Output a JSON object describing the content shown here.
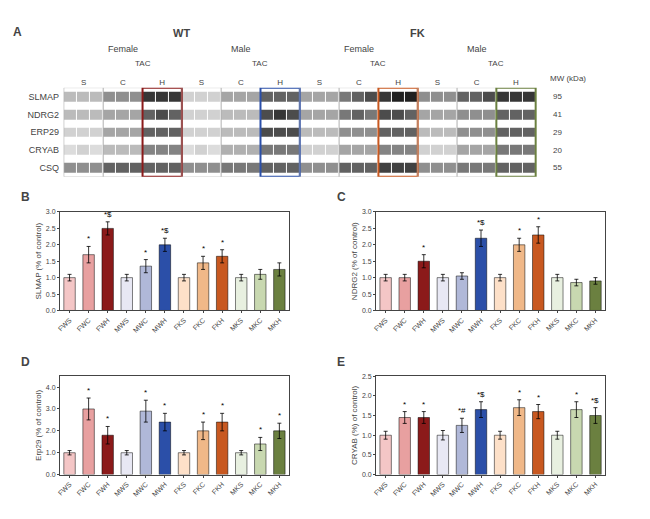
{
  "chart_data": [
    {
      "type": "heatmap",
      "title": "A",
      "rows": [
        "SLMAP",
        "NDRG2",
        "ERP29",
        "CRYAB",
        "CSQ"
      ],
      "categories": [
        null,
        "S",
        null,
        null,
        "C",
        null,
        null,
        "H",
        null,
        null,
        "S",
        null,
        null,
        "C",
        null,
        null,
        "H",
        null,
        null,
        "S",
        null,
        null,
        "C",
        null,
        null,
        "H",
        null,
        null,
        "S",
        null,
        null,
        "C",
        null,
        null,
        "H",
        null
      ],
      "cells": [
        [
          [
            0.3,
            0.3,
            0.3
          ],
          [
            0.5,
            0.5,
            0.5
          ],
          [
            0.9,
            0.9,
            0.9
          ],
          [
            0.2,
            0.2,
            0.2
          ],
          [
            0.4,
            0.4,
            0.4
          ],
          [
            0.7,
            0.7,
            0.7
          ],
          [
            0.4,
            0.4,
            0.4
          ],
          [
            0.6,
            0.7,
            0.8
          ],
          [
            0.9,
            1.0,
            1.0
          ],
          [
            0.5,
            0.5,
            0.5
          ],
          [
            0.7,
            0.7,
            0.8
          ],
          [
            0.9,
            0.9,
            0.9
          ]
        ],
        [
          [
            0.3,
            0.3,
            0.3
          ],
          [
            0.4,
            0.4,
            0.4
          ],
          [
            0.7,
            0.8,
            0.7
          ],
          [
            0.2,
            0.2,
            0.2
          ],
          [
            0.3,
            0.3,
            0.3
          ],
          [
            0.8,
            0.9,
            0.8
          ],
          [
            0.4,
            0.4,
            0.4
          ],
          [
            0.6,
            0.7,
            0.6
          ],
          [
            0.8,
            0.8,
            0.7
          ],
          [
            0.4,
            0.4,
            0.4
          ],
          [
            0.5,
            0.5,
            0.5
          ],
          [
            0.7,
            0.7,
            0.7
          ]
        ],
        [
          [
            0.2,
            0.2,
            0.2
          ],
          [
            0.4,
            0.4,
            0.4
          ],
          [
            0.7,
            0.7,
            0.7
          ],
          [
            0.2,
            0.2,
            0.2
          ],
          [
            0.3,
            0.3,
            0.3
          ],
          [
            0.8,
            0.8,
            0.8
          ],
          [
            0.3,
            0.3,
            0.3
          ],
          [
            0.5,
            0.5,
            0.5
          ],
          [
            0.7,
            0.7,
            0.7
          ],
          [
            0.3,
            0.3,
            0.3
          ],
          [
            0.5,
            0.5,
            0.5
          ],
          [
            0.7,
            0.7,
            0.7
          ]
        ],
        [
          [
            0.15,
            0.2,
            0.15
          ],
          [
            0.3,
            0.3,
            0.3
          ],
          [
            0.55,
            0.55,
            0.55
          ],
          [
            0.15,
            0.2,
            0.15
          ],
          [
            0.35,
            0.35,
            0.35
          ],
          [
            0.6,
            0.6,
            0.6
          ],
          [
            0.2,
            0.2,
            0.2
          ],
          [
            0.4,
            0.4,
            0.4
          ],
          [
            0.55,
            0.55,
            0.55
          ],
          [
            0.2,
            0.2,
            0.2
          ],
          [
            0.4,
            0.4,
            0.4
          ],
          [
            0.6,
            0.6,
            0.6
          ]
        ],
        [
          [
            0.5,
            0.5,
            0.5
          ],
          [
            0.7,
            0.7,
            0.7
          ],
          [
            0.7,
            0.7,
            0.7
          ],
          [
            0.5,
            0.5,
            0.5
          ],
          [
            0.6,
            0.6,
            0.6
          ],
          [
            0.7,
            0.7,
            0.7
          ],
          [
            0.5,
            0.5,
            0.5
          ],
          [
            0.7,
            0.7,
            0.7
          ],
          [
            0.85,
            0.85,
            0.85
          ],
          [
            0.5,
            0.5,
            0.5
          ],
          [
            0.6,
            0.6,
            0.6
          ],
          [
            0.7,
            0.7,
            0.7
          ]
        ]
      ],
      "groups": [
        "WT",
        "FK"
      ],
      "subgroups": [
        "Female",
        "Male"
      ],
      "group_note": "TAC",
      "colors": [
        null,
        null,
        "#8b1a1a",
        null,
        null,
        "#2b4fa8",
        null,
        null,
        "#c85820",
        null,
        null,
        "#6b8040"
      ],
      "mw_label": "MW (kDa)",
      "mw_values": [
        95,
        41,
        29,
        20,
        55
      ],
      "grid": false
    },
    {
      "type": "bar",
      "title": "B",
      "categories": [
        "FWS",
        "FWC",
        "FWH",
        "MWS",
        "MWC",
        "MWH",
        "FKS",
        "FKC",
        "FKH",
        "MKS",
        "MKC",
        "MKH"
      ],
      "values": [
        1.0,
        1.7,
        2.5,
        1.0,
        1.35,
        2.0,
        1.0,
        1.45,
        1.65,
        1.0,
        1.1,
        1.25
      ],
      "errors": [
        0.1,
        0.25,
        0.2,
        0.1,
        0.2,
        0.2,
        0.1,
        0.2,
        0.2,
        0.1,
        0.15,
        0.2
      ],
      "colors": [
        "#f4c6c6",
        "#e8a0a0",
        "#8b1a1a",
        "#e8e8f4",
        "#b0b8d8",
        "#2b4fa8",
        "#fde0c8",
        "#f0b888",
        "#c85820",
        "#e8f0e0",
        "#c8d8b0",
        "#6b8040"
      ],
      "annotations": [
        null,
        "*",
        "*$",
        null,
        "*",
        "*$",
        null,
        "*",
        "*",
        null,
        null,
        null
      ],
      "ylabel": "SLMAP (% of control)",
      "ylim": [
        0.0,
        3.0
      ],
      "yticks": [
        {
          "value": 0.0,
          "label": "0.0"
        },
        {
          "value": 0.5,
          "label": "0.5"
        },
        {
          "value": 1.0,
          "label": "1.0"
        },
        {
          "value": 1.5,
          "label": "1.5"
        },
        {
          "value": 2.0,
          "label": "2.0"
        },
        {
          "value": 2.5,
          "label": "2.5"
        },
        {
          "value": 3.0,
          "label": "3.0"
        }
      ],
      "grid": false
    },
    {
      "type": "bar",
      "title": "C",
      "categories": [
        "FWS",
        "FWC",
        "FWH",
        "MWS",
        "MWC",
        "MWH",
        "FKS",
        "FKC",
        "FKH",
        "MKS",
        "MKC",
        "MKH"
      ],
      "values": [
        1.0,
        1.0,
        1.5,
        1.0,
        1.05,
        2.2,
        1.0,
        2.0,
        2.3,
        1.0,
        0.85,
        0.9
      ],
      "errors": [
        0.1,
        0.1,
        0.2,
        0.1,
        0.1,
        0.25,
        0.1,
        0.2,
        0.25,
        0.1,
        0.1,
        0.1
      ],
      "colors": [
        "#f4c6c6",
        "#e8a0a0",
        "#8b1a1a",
        "#e8e8f4",
        "#b0b8d8",
        "#2b4fa8",
        "#fde0c8",
        "#f0b888",
        "#c85820",
        "#e8f0e0",
        "#c8d8b0",
        "#6b8040"
      ],
      "annotations": [
        null,
        null,
        "*",
        null,
        null,
        "*$",
        null,
        "*",
        "*",
        null,
        null,
        null
      ],
      "ylabel": "NDRG2 (% of control)",
      "ylim": [
        0.0,
        3.0
      ],
      "yticks": [
        {
          "value": 0.0,
          "label": "0.0"
        },
        {
          "value": 0.5,
          "label": "0.5"
        },
        {
          "value": 1.0,
          "label": "1.0"
        },
        {
          "value": 1.5,
          "label": "1.5"
        },
        {
          "value": 2.0,
          "label": "2.0"
        },
        {
          "value": 2.5,
          "label": "2.5"
        },
        {
          "value": 3.0,
          "label": "3.0"
        }
      ],
      "grid": false
    },
    {
      "type": "bar",
      "title": "D",
      "categories": [
        "FWS",
        "FWC",
        "FWH",
        "MWS",
        "MWC",
        "MWH",
        "FKS",
        "FKC",
        "FKH",
        "MKS",
        "MKC",
        "MKH"
      ],
      "values": [
        1.0,
        3.0,
        1.8,
        1.0,
        2.9,
        2.4,
        1.0,
        2.0,
        2.4,
        1.0,
        1.4,
        2.0
      ],
      "errors": [
        0.1,
        0.5,
        0.4,
        0.1,
        0.5,
        0.4,
        0.1,
        0.4,
        0.4,
        0.1,
        0.3,
        0.35
      ],
      "colors": [
        "#f4c6c6",
        "#e8a0a0",
        "#8b1a1a",
        "#e8e8f4",
        "#b0b8d8",
        "#2b4fa8",
        "#fde0c8",
        "#f0b888",
        "#c85820",
        "#e8f0e0",
        "#c8d8b0",
        "#6b8040"
      ],
      "annotations": [
        null,
        "*",
        "*",
        null,
        "*",
        "*",
        null,
        "*",
        "*",
        null,
        "*",
        "*"
      ],
      "ylabel": "Erp29 (% of control)",
      "ylim": [
        0.0,
        4.5
      ],
      "yticks": [
        {
          "value": 0.0,
          "label": "0.0"
        },
        {
          "value": 1.0,
          "label": "1.0"
        },
        {
          "value": 2.0,
          "label": "2.0"
        },
        {
          "value": 3.0,
          "label": "3.0"
        },
        {
          "value": 4.0,
          "label": "4.0"
        }
      ],
      "grid": false
    },
    {
      "type": "bar",
      "title": "E",
      "categories": [
        "FWS",
        "FWC",
        "FWH",
        "MWS",
        "MWC",
        "MWH",
        "FKS",
        "FKC",
        "FKH",
        "MKS",
        "MKC",
        "MKH"
      ],
      "values": [
        1.0,
        1.45,
        1.45,
        1.0,
        1.25,
        1.65,
        1.0,
        1.7,
        1.6,
        1.0,
        1.65,
        1.5
      ],
      "errors": [
        0.1,
        0.15,
        0.15,
        0.12,
        0.18,
        0.2,
        0.1,
        0.2,
        0.18,
        0.1,
        0.2,
        0.2
      ],
      "colors": [
        "#f4c6c6",
        "#e8a0a0",
        "#8b1a1a",
        "#e8e8f4",
        "#b0b8d8",
        "#2b4fa8",
        "#fde0c8",
        "#f0b888",
        "#c85820",
        "#e8f0e0",
        "#c8d8b0",
        "#6b8040"
      ],
      "annotations": [
        null,
        "*",
        "*",
        null,
        "*#",
        "*$",
        null,
        "*",
        "*",
        null,
        "*",
        "*$"
      ],
      "ylabel": "CRYAB (%) of control)",
      "ylim": [
        0.0,
        2.5
      ],
      "yticks": [
        {
          "value": 0.0,
          "label": "0.0"
        },
        {
          "value": 0.5,
          "label": "0.5"
        },
        {
          "value": 1.0,
          "label": "1.0"
        },
        {
          "value": 1.5,
          "label": "1.5"
        },
        {
          "value": 2.0,
          "label": "2.0"
        },
        {
          "value": 2.5,
          "label": "2.5"
        }
      ],
      "grid": false
    }
  ]
}
